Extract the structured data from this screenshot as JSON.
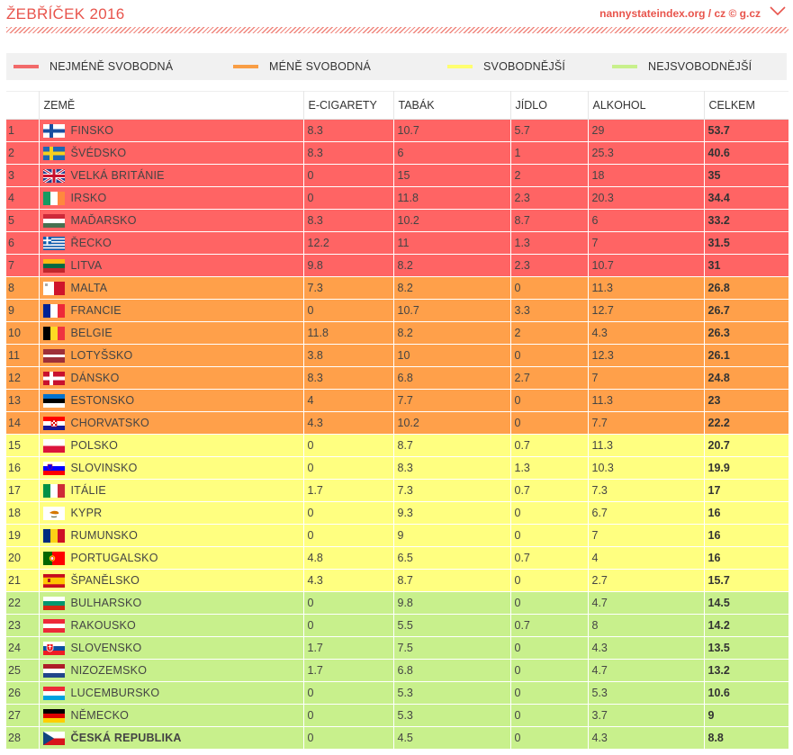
{
  "header": {
    "title": "ŽEBŘÍČEK 2016",
    "source": "nannystateindex.org / cz © g.cz"
  },
  "colors": {
    "least_free": "#ff6464",
    "less_free": "#ffa04a",
    "freer": "#ffff80",
    "most_free": "#c8f08c",
    "accent": "#e8544c"
  },
  "legend": [
    {
      "label": "NEJMÉNĚ SVOBODNÁ",
      "color": "#f26a6a"
    },
    {
      "label": "MÉNĚ SVOBODNÁ",
      "color": "#f99e45"
    },
    {
      "label": "SVOBODNĚJŠÍ",
      "color": "#ffff70"
    },
    {
      "label": "NEJSVOBODNĚJŠÍ",
      "color": "#c8f08c"
    }
  ],
  "columns": [
    "",
    "ZEMĚ",
    "E-CIGARETY",
    "TABÁK",
    "JÍDLO",
    "ALKOHOL",
    "CELKEM"
  ],
  "chart_data": {
    "type": "table",
    "title": "ŽEBŘÍČEK 2016",
    "columns": [
      "ZEMĚ",
      "E-CIGARETY",
      "TABÁK",
      "JÍDLO",
      "ALKOHOL",
      "CELKEM"
    ],
    "rows": [
      {
        "rank": "1",
        "country": "FINSKO",
        "flag": "fi",
        "ecig": "8.3",
        "tobacco": "10.7",
        "food": "5.7",
        "alcohol": "29",
        "total": "53.7",
        "group": "least_free"
      },
      {
        "rank": "2",
        "country": "ŠVÉDSKO",
        "flag": "se",
        "ecig": "8.3",
        "tobacco": "6",
        "food": "1",
        "alcohol": "25.3",
        "total": "40.6",
        "group": "least_free"
      },
      {
        "rank": "3",
        "country": "VELKÁ BRITÁNIE",
        "flag": "gb",
        "ecig": "0",
        "tobacco": "15",
        "food": "2",
        "alcohol": "18",
        "total": "35",
        "group": "least_free"
      },
      {
        "rank": "4",
        "country": "IRSKO",
        "flag": "ie",
        "ecig": "0",
        "tobacco": "11.8",
        "food": "2.3",
        "alcohol": "20.3",
        "total": "34.4",
        "group": "least_free"
      },
      {
        "rank": "5",
        "country": "MAĎARSKO",
        "flag": "hu",
        "ecig": "8.3",
        "tobacco": "10.2",
        "food": "8.7",
        "alcohol": "6",
        "total": "33.2",
        "group": "least_free"
      },
      {
        "rank": "6",
        "country": "ŘECKO",
        "flag": "gr",
        "ecig": "12.2",
        "tobacco": "11",
        "food": "1.3",
        "alcohol": "7",
        "total": "31.5",
        "group": "least_free"
      },
      {
        "rank": "7",
        "country": "LITVA",
        "flag": "lt",
        "ecig": "9.8",
        "tobacco": "8.2",
        "food": "2.3",
        "alcohol": "10.7",
        "total": "31",
        "group": "least_free"
      },
      {
        "rank": "8",
        "country": "MALTA",
        "flag": "mt",
        "ecig": "7.3",
        "tobacco": "8.2",
        "food": "0",
        "alcohol": "11.3",
        "total": "26.8",
        "group": "less_free"
      },
      {
        "rank": "9",
        "country": "FRANCIE",
        "flag": "fr",
        "ecig": "0",
        "tobacco": "10.7",
        "food": "3.3",
        "alcohol": "12.7",
        "total": "26.7",
        "group": "less_free"
      },
      {
        "rank": "10",
        "country": "BELGIE",
        "flag": "be",
        "ecig": "11.8",
        "tobacco": "8.2",
        "food": "2",
        "alcohol": "4.3",
        "total": "26.3",
        "group": "less_free"
      },
      {
        "rank": "11",
        "country": "LOTYŠSKO",
        "flag": "lv",
        "ecig": "3.8",
        "tobacco": "10",
        "food": "0",
        "alcohol": "12.3",
        "total": "26.1",
        "group": "less_free"
      },
      {
        "rank": "12",
        "country": "DÁNSKO",
        "flag": "dk",
        "ecig": "8.3",
        "tobacco": "6.8",
        "food": "2.7",
        "alcohol": "7",
        "total": "24.8",
        "group": "less_free"
      },
      {
        "rank": "13",
        "country": "ESTONSKO",
        "flag": "ee",
        "ecig": "4",
        "tobacco": "7.7",
        "food": "0",
        "alcohol": "11.3",
        "total": "23",
        "group": "less_free"
      },
      {
        "rank": "14",
        "country": "CHORVATSKO",
        "flag": "hr",
        "ecig": "4.3",
        "tobacco": "10.2",
        "food": "0",
        "alcohol": "7.7",
        "total": "22.2",
        "group": "less_free"
      },
      {
        "rank": "15",
        "country": "POLSKO",
        "flag": "pl",
        "ecig": "0",
        "tobacco": "8.7",
        "food": "0.7",
        "alcohol": "11.3",
        "total": "20.7",
        "group": "freer"
      },
      {
        "rank": "16",
        "country": "SLOVINSKO",
        "flag": "si",
        "ecig": "0",
        "tobacco": "8.3",
        "food": "1.3",
        "alcohol": "10.3",
        "total": "19.9",
        "group": "freer"
      },
      {
        "rank": "17",
        "country": "ITÁLIE",
        "flag": "it",
        "ecig": "1.7",
        "tobacco": "7.3",
        "food": "0.7",
        "alcohol": "7.3",
        "total": "17",
        "group": "freer"
      },
      {
        "rank": "18",
        "country": "KYPR",
        "flag": "cy",
        "ecig": "0",
        "tobacco": "9.3",
        "food": "0",
        "alcohol": "6.7",
        "total": "16",
        "group": "freer"
      },
      {
        "rank": "19",
        "country": "RUMUNSKO",
        "flag": "ro",
        "ecig": "0",
        "tobacco": "9",
        "food": "0",
        "alcohol": "7",
        "total": "16",
        "group": "freer"
      },
      {
        "rank": "20",
        "country": "PORTUGALSKO",
        "flag": "pt",
        "ecig": "4.8",
        "tobacco": "6.5",
        "food": "0.7",
        "alcohol": "4",
        "total": "16",
        "group": "freer"
      },
      {
        "rank": "21",
        "country": "ŠPANĚLSKO",
        "flag": "es",
        "ecig": "4.3",
        "tobacco": "8.7",
        "food": "0",
        "alcohol": "2.7",
        "total": "15.7",
        "group": "freer"
      },
      {
        "rank": "22",
        "country": "BULHARSKO",
        "flag": "bg",
        "ecig": "0",
        "tobacco": "9.8",
        "food": "0",
        "alcohol": "4.7",
        "total": "14.5",
        "group": "most_free"
      },
      {
        "rank": "23",
        "country": "RAKOUSKO",
        "flag": "at",
        "ecig": "0",
        "tobacco": "5.5",
        "food": "0.7",
        "alcohol": "8",
        "total": "14.2",
        "group": "most_free"
      },
      {
        "rank": "24",
        "country": "SLOVENSKO",
        "flag": "sk",
        "ecig": "1.7",
        "tobacco": "7.5",
        "food": "0",
        "alcohol": "4.3",
        "total": "13.5",
        "group": "most_free"
      },
      {
        "rank": "25",
        "country": "NIZOZEMSKO",
        "flag": "nl",
        "ecig": "1.7",
        "tobacco": "6.8",
        "food": "0",
        "alcohol": "4.7",
        "total": "13.2",
        "group": "most_free"
      },
      {
        "rank": "26",
        "country": "LUCEMBURSKO",
        "flag": "lu",
        "ecig": "0",
        "tobacco": "5.3",
        "food": "0",
        "alcohol": "5.3",
        "total": "10.6",
        "group": "most_free"
      },
      {
        "rank": "27",
        "country": "NĚMECKO",
        "flag": "de",
        "ecig": "0",
        "tobacco": "5.3",
        "food": "0",
        "alcohol": "3.7",
        "total": "9",
        "group": "most_free"
      },
      {
        "rank": "28",
        "country": "ČESKÁ REPUBLIKA",
        "flag": "cz",
        "ecig": "0",
        "tobacco": "4.5",
        "food": "0",
        "alcohol": "4.3",
        "total": "8.8",
        "group": "most_free",
        "highlight": true
      }
    ]
  }
}
